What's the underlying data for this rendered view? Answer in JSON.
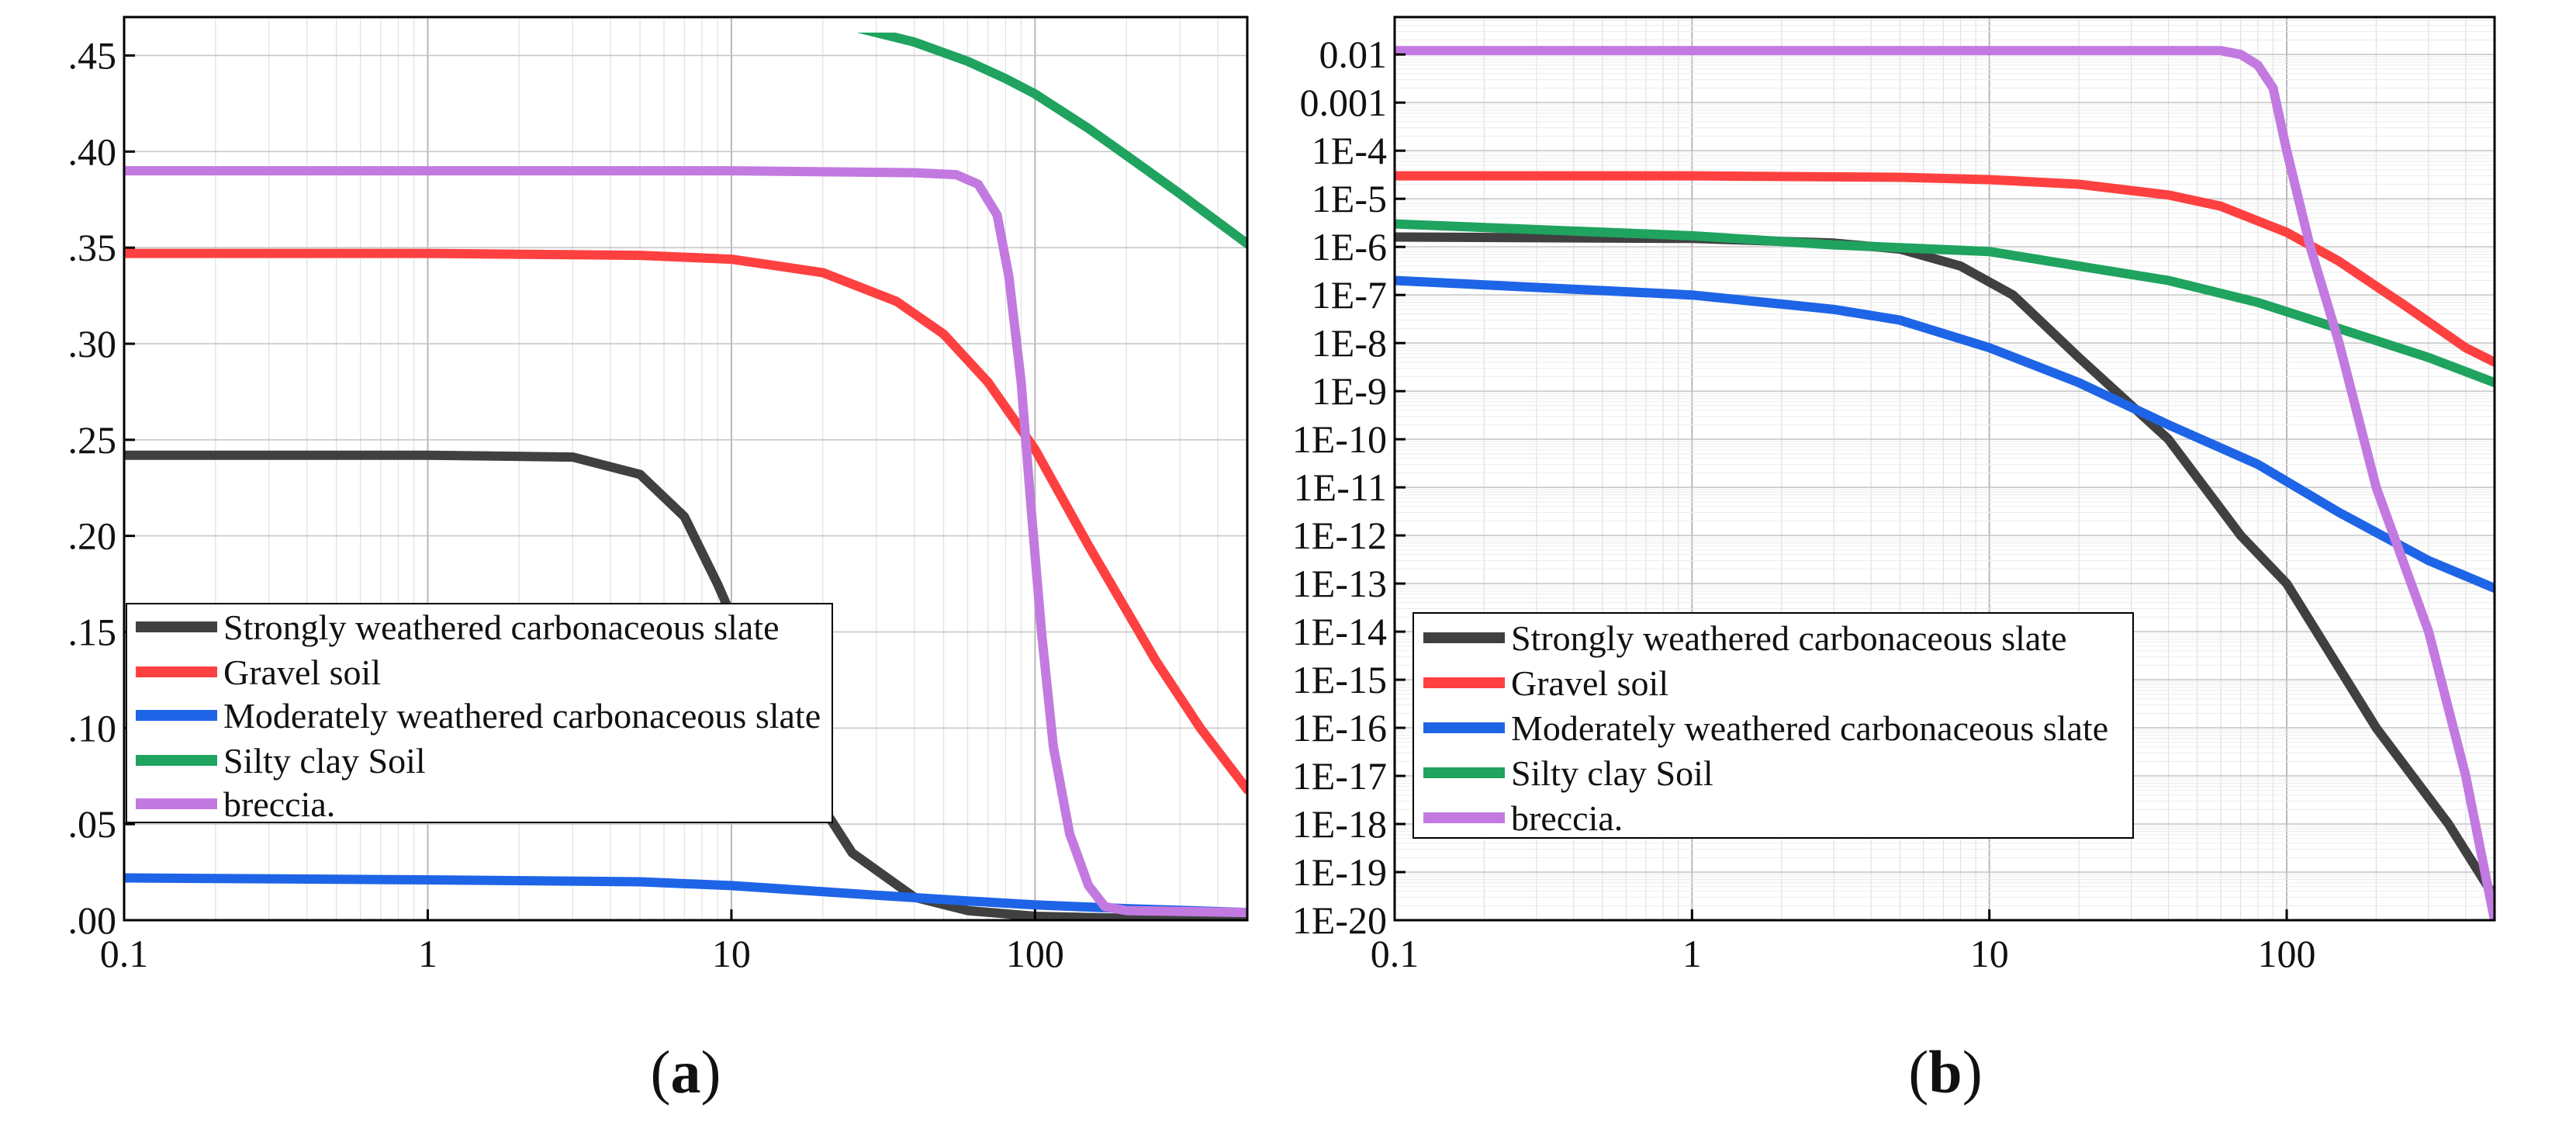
{
  "chart_data": [
    {
      "type": "line",
      "caption": "a",
      "x_scale": "log",
      "y_scale": "linear",
      "xlim": [
        0.1,
        500
      ],
      "ylim": [
        0,
        0.47
      ],
      "grid": true,
      "legend_placement": "lower-left",
      "x_ticks": [
        "0.1",
        "1",
        "10",
        "100"
      ],
      "y_ticks": [
        ".45",
        ".40",
        ".35",
        ".30",
        ".25",
        ".20",
        ".15",
        ".10",
        ".05",
        ".00"
      ],
      "y_tick_values": [
        0.45,
        0.4,
        0.35,
        0.3,
        0.25,
        0.2,
        0.15,
        0.1,
        0.05,
        0.0
      ],
      "series": [
        {
          "name": "Strongly weathered carbonaceous slate",
          "color": "#404040",
          "points": [
            [
              0.1,
              0.242
            ],
            [
              1,
              0.242
            ],
            [
              3,
              0.241
            ],
            [
              5,
              0.232
            ],
            [
              7,
              0.21
            ],
            [
              9,
              0.175
            ],
            [
              12,
              0.13
            ],
            [
              18,
              0.07
            ],
            [
              25,
              0.035
            ],
            [
              40,
              0.012
            ],
            [
              60,
              0.005
            ],
            [
              100,
              0.002
            ],
            [
              200,
              0.001
            ],
            [
              500,
              0.001
            ]
          ]
        },
        {
          "name": "Gravel soil",
          "color": "#ff4040",
          "points": [
            [
              0.1,
              0.347
            ],
            [
              1,
              0.347
            ],
            [
              5,
              0.346
            ],
            [
              10,
              0.344
            ],
            [
              20,
              0.337
            ],
            [
              35,
              0.322
            ],
            [
              50,
              0.305
            ],
            [
              70,
              0.28
            ],
            [
              100,
              0.245
            ],
            [
              150,
              0.195
            ],
            [
              250,
              0.135
            ],
            [
              350,
              0.1
            ],
            [
              500,
              0.068
            ]
          ]
        },
        {
          "name": "Moderately weathered carbonaceous slate",
          "color": "#1e64e6",
          "points": [
            [
              0.1,
              0.022
            ],
            [
              1,
              0.021
            ],
            [
              5,
              0.02
            ],
            [
              10,
              0.018
            ],
            [
              30,
              0.013
            ],
            [
              60,
              0.01
            ],
            [
              100,
              0.008
            ],
            [
              200,
              0.006
            ],
            [
              500,
              0.004
            ]
          ]
        },
        {
          "name": "Silty clay Soil",
          "color": "#1fa35f",
          "points": [
            [
              0.1,
              0.47
            ],
            [
              5,
              0.47
            ],
            [
              15,
              0.468
            ],
            [
              25,
              0.465
            ],
            [
              40,
              0.457
            ],
            [
              60,
              0.447
            ],
            [
              80,
              0.438
            ],
            [
              100,
              0.43
            ],
            [
              150,
              0.412
            ],
            [
              200,
              0.398
            ],
            [
              300,
              0.378
            ],
            [
              500,
              0.352
            ]
          ]
        },
        {
          "name": "breccia.",
          "color": "#c27ae0",
          "points": [
            [
              0.1,
              0.39
            ],
            [
              10,
              0.39
            ],
            [
              40,
              0.389
            ],
            [
              55,
              0.388
            ],
            [
              65,
              0.383
            ],
            [
              75,
              0.367
            ],
            [
              82,
              0.335
            ],
            [
              90,
              0.28
            ],
            [
              97,
              0.215
            ],
            [
              105,
              0.15
            ],
            [
              115,
              0.09
            ],
            [
              130,
              0.045
            ],
            [
              150,
              0.018
            ],
            [
              170,
              0.007
            ],
            [
              200,
              0.005
            ],
            [
              500,
              0.004
            ]
          ]
        }
      ]
    },
    {
      "type": "line",
      "caption": "b",
      "x_scale": "log",
      "y_scale": "log",
      "xlim": [
        0.1,
        500
      ],
      "ylim": [
        1e-20,
        0.06
      ],
      "grid": true,
      "legend_placement": "lower-left",
      "x_ticks": [
        "0.1",
        "1",
        "10",
        "100"
      ],
      "y_ticks": [
        "0.01",
        "0.001",
        "1E-4",
        "1E-5",
        "1E-6",
        "1E-7",
        "1E-8",
        "1E-9",
        "1E-10",
        "1E-11",
        "1E-12",
        "1E-13",
        "1E-14",
        "1E-15",
        "1E-16",
        "1E-17",
        "1E-18",
        "1E-19",
        "1E-20"
      ],
      "y_tick_values": [
        0.01,
        0.001,
        0.0001,
        1e-05,
        1e-06,
        1e-07,
        1e-08,
        1e-09,
        1e-10,
        1e-11,
        1e-12,
        1e-13,
        1e-14,
        1e-15,
        1e-16,
        1e-17,
        1e-18,
        1e-19,
        1e-20
      ],
      "series": [
        {
          "name": "Strongly weathered carbonaceous slate",
          "color": "#404040",
          "points": [
            [
              0.1,
              1.6e-06
            ],
            [
              1,
              1.5e-06
            ],
            [
              3,
              1.2e-06
            ],
            [
              5,
              9e-07
            ],
            [
              8,
              4e-07
            ],
            [
              12,
              1e-07
            ],
            [
              20,
              5e-09
            ],
            [
              40,
              1e-10
            ],
            [
              70,
              1e-12
            ],
            [
              100,
              1e-13
            ],
            [
              200,
              1e-16
            ],
            [
              350,
              1e-18
            ],
            [
              500,
              3e-20
            ]
          ]
        },
        {
          "name": "Gravel soil",
          "color": "#ff4040",
          "points": [
            [
              0.1,
              3e-05
            ],
            [
              1,
              3e-05
            ],
            [
              5,
              2.8e-05
            ],
            [
              10,
              2.5e-05
            ],
            [
              20,
              2e-05
            ],
            [
              40,
              1.2e-05
            ],
            [
              60,
              7e-06
            ],
            [
              100,
              2e-06
            ],
            [
              150,
              5e-07
            ],
            [
              250,
              6e-08
            ],
            [
              400,
              8e-09
            ],
            [
              500,
              4e-09
            ]
          ]
        },
        {
          "name": "Moderately weathered carbonaceous slate",
          "color": "#1e64e6",
          "points": [
            [
              0.1,
              2e-07
            ],
            [
              1,
              1e-07
            ],
            [
              3,
              5e-08
            ],
            [
              5,
              3e-08
            ],
            [
              10,
              8e-09
            ],
            [
              20,
              1.5e-09
            ],
            [
              40,
              2e-10
            ],
            [
              80,
              3e-11
            ],
            [
              150,
              3e-12
            ],
            [
              300,
              3e-13
            ],
            [
              500,
              8e-14
            ]
          ]
        },
        {
          "name": "Silty clay Soil",
          "color": "#1fa35f",
          "points": [
            [
              0.1,
              3e-06
            ],
            [
              1,
              1.7e-06
            ],
            [
              3,
              1.1e-06
            ],
            [
              10,
              8e-07
            ],
            [
              20,
              4e-07
            ],
            [
              40,
              2e-07
            ],
            [
              80,
              7e-08
            ],
            [
              150,
              2e-08
            ],
            [
              300,
              5e-09
            ],
            [
              500,
              1.5e-09
            ]
          ]
        },
        {
          "name": "breccia.",
          "color": "#c27ae0",
          "points": [
            [
              0.1,
              0.012
            ],
            [
              10,
              0.012
            ],
            [
              40,
              0.012
            ],
            [
              60,
              0.012
            ],
            [
              70,
              0.01
            ],
            [
              80,
              0.006
            ],
            [
              90,
              0.002
            ],
            [
              100,
              0.0001
            ],
            [
              120,
              1e-06
            ],
            [
              150,
              1e-08
            ],
            [
              200,
              1e-11
            ],
            [
              300,
              1e-14
            ],
            [
              400,
              1e-17
            ],
            [
              500,
              1e-20
            ]
          ]
        }
      ]
    }
  ]
}
